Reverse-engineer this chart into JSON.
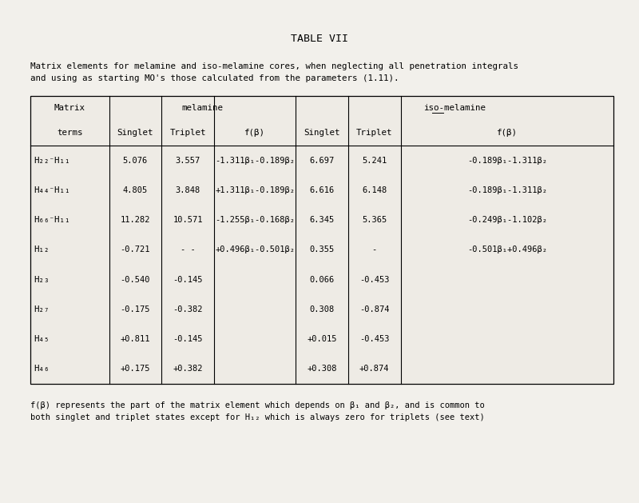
{
  "title": "TABLE VII",
  "subtitle_line1": "Matrix elements for melamine and iso-melamine cores, when neglecting all penetration integrals",
  "subtitle_line2": "and using as starting MO's those calculated from the parameters (1.11).",
  "footnote_line1": "f(β) represents the part of the matrix element which depends on β₁ and β₂, and is common to",
  "footnote_line2": "both singlet and triplet states except for H₁₂ which is always zero for triplets (see text)",
  "bg_color": "#f2f0eb",
  "table_bg": "#eeebe5",
  "rows": [
    [
      "H₂₂⁻H₁₁",
      "5.076",
      "3.557",
      "-1.311β₁-0.189β₂",
      "6.697",
      "5.241",
      "-0.189β₁-1.311β₂"
    ],
    [
      "H₄₄⁻H₁₁",
      "4.805",
      "3.848",
      "+1.311β₁-0.189β₂",
      "6.616",
      "6.148",
      "-0.189β₁-1.311β₂"
    ],
    [
      "H₆₆⁻H₁₁",
      "11.282",
      "10.571",
      "-1.255β₁-0.168β₂",
      "6.345",
      "5.365",
      "-0.249β₁-1.102β₂"
    ],
    [
      "H₁₂",
      "-0.721",
      "- -",
      "+0.496β₁-0.501β₂",
      "0.355",
      "-",
      "-0.501β₁+0.496β₂"
    ],
    [
      "H₂₃",
      "-0.540",
      "-0.145",
      "",
      "0.066",
      "-0.453",
      ""
    ],
    [
      "H₂₇",
      "-0.175",
      "-0.382",
      "",
      "0.308",
      "-0.874",
      ""
    ],
    [
      "H₄₅",
      "+0.811",
      "-0.145",
      "",
      "+0.015",
      "-0.453",
      ""
    ],
    [
      "H₄₆",
      "+0.175",
      "+0.382",
      "",
      "+0.308",
      "+0.874",
      ""
    ]
  ],
  "font_size": 7.8,
  "title_font_size": 9.5,
  "subtitle_font_size": 7.8,
  "footnote_font_size": 7.5
}
